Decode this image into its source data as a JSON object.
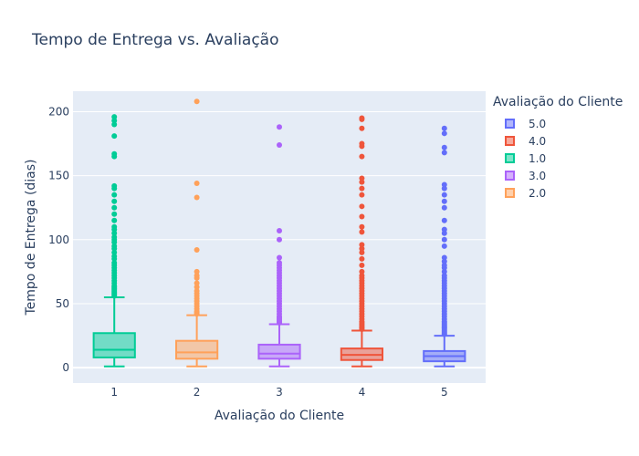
{
  "chart_data": {
    "type": "box",
    "title": "Tempo de Entrega vs. Avaliação",
    "xlabel": "Avaliação do Cliente",
    "ylabel": "Tempo de Entrega (dias)",
    "ylim": [
      -12,
      216
    ],
    "yticks": [
      0,
      50,
      100,
      150,
      200
    ],
    "categories": [
      "1",
      "2",
      "3",
      "4",
      "5"
    ],
    "grid": true,
    "legend_title": "Avaliação do Cliente",
    "legend_position": "top-right",
    "legend": [
      {
        "label": "5.0",
        "color": "#636efa"
      },
      {
        "label": "4.0",
        "color": "#ef553b"
      },
      {
        "label": "1.0",
        "color": "#00cc96"
      },
      {
        "label": "3.0",
        "color": "#ab63fa"
      },
      {
        "label": "2.0",
        "color": "#ffa15a"
      }
    ],
    "series": [
      {
        "name": "1.0",
        "x": "1",
        "color": "#00cc96",
        "min": 1,
        "q1": 8,
        "median": 14,
        "q3": 27,
        "max": 55,
        "outliers": [
          56,
          57,
          58,
          59,
          60,
          61,
          62,
          63,
          64,
          66,
          68,
          70,
          72,
          74,
          76,
          78,
          80,
          82,
          85,
          87,
          90,
          93,
          95,
          98,
          100,
          102,
          105,
          108,
          110,
          115,
          120,
          125,
          130,
          135,
          140,
          142,
          165,
          167,
          181,
          190,
          193,
          196
        ]
      },
      {
        "name": "2.0",
        "x": "2",
        "color": "#ffa15a",
        "min": 1,
        "q1": 7,
        "median": 12,
        "q3": 21,
        "max": 41,
        "outliers": [
          42,
          43,
          44,
          46,
          48,
          50,
          52,
          54,
          56,
          58,
          60,
          63,
          66,
          70,
          72,
          75,
          92,
          133,
          144,
          208
        ]
      },
      {
        "name": "3.0",
        "x": "3",
        "color": "#ab63fa",
        "min": 1,
        "q1": 7,
        "median": 11,
        "q3": 18,
        "max": 34,
        "outliers": [
          35,
          36,
          37,
          38,
          39,
          40,
          42,
          44,
          46,
          48,
          50,
          52,
          54,
          56,
          58,
          60,
          62,
          64,
          66,
          68,
          70,
          72,
          74,
          76,
          78,
          80,
          82,
          86,
          100,
          107,
          174,
          188
        ]
      },
      {
        "name": "4.0",
        "x": "4",
        "color": "#ef553b",
        "min": 1,
        "q1": 6,
        "median": 10,
        "q3": 15,
        "max": 29,
        "outliers": [
          30,
          31,
          32,
          33,
          34,
          35,
          36,
          38,
          40,
          42,
          44,
          46,
          48,
          50,
          52,
          54,
          56,
          58,
          60,
          62,
          64,
          66,
          68,
          70,
          72,
          75,
          80,
          85,
          90,
          93,
          96,
          106,
          110,
          118,
          126,
          135,
          140,
          145,
          148,
          165,
          173,
          175,
          187,
          194,
          195
        ]
      },
      {
        "name": "5.0",
        "x": "5",
        "color": "#636efa",
        "min": 1,
        "q1": 5,
        "median": 9,
        "q3": 13,
        "max": 25,
        "outliers": [
          26,
          27,
          28,
          29,
          30,
          31,
          32,
          33,
          34,
          35,
          36,
          38,
          40,
          42,
          44,
          46,
          48,
          50,
          52,
          54,
          56,
          58,
          60,
          62,
          64,
          66,
          68,
          70,
          72,
          75,
          78,
          80,
          83,
          86,
          95,
          100,
          105,
          108,
          115,
          125,
          130,
          135,
          140,
          143,
          168,
          172,
          183,
          187
        ]
      }
    ]
  }
}
